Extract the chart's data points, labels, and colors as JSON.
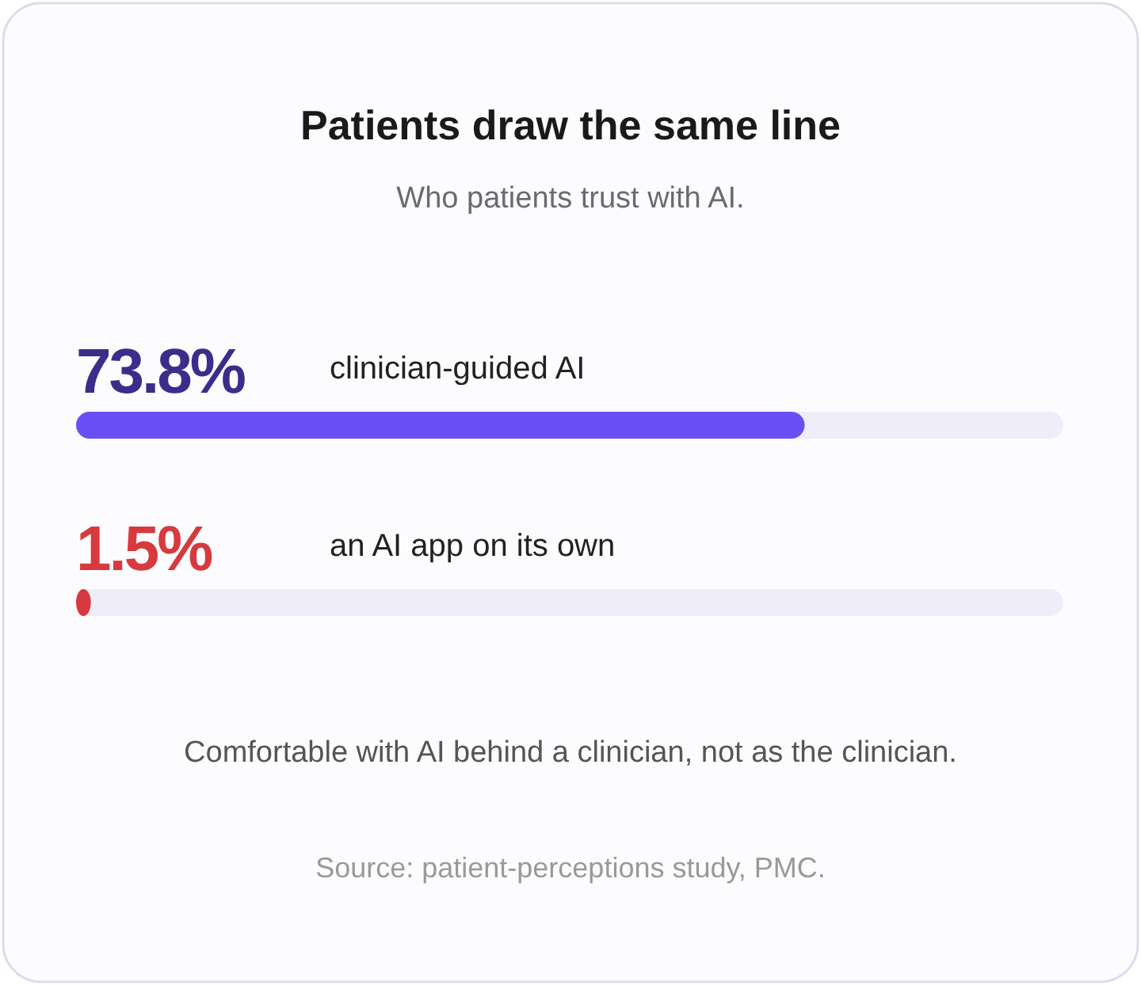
{
  "chart_data": {
    "type": "bar",
    "orientation": "horizontal",
    "title": "Patients draw the same line",
    "subtitle": "Who patients trust with AI.",
    "categories": [
      "clinician-guided AI",
      "an AI app on its own"
    ],
    "values": [
      73.8,
      1.5
    ],
    "colors": [
      "#6a4ff5",
      "#d63a3f"
    ],
    "value_labels": [
      "73.8%",
      "1.5%"
    ],
    "tick_labels": false,
    "annotations": [
      "Comfortable with AI behind a clinician, not as the clinician.",
      "Source: patient-perceptions study, PMC."
    ]
  }
}
